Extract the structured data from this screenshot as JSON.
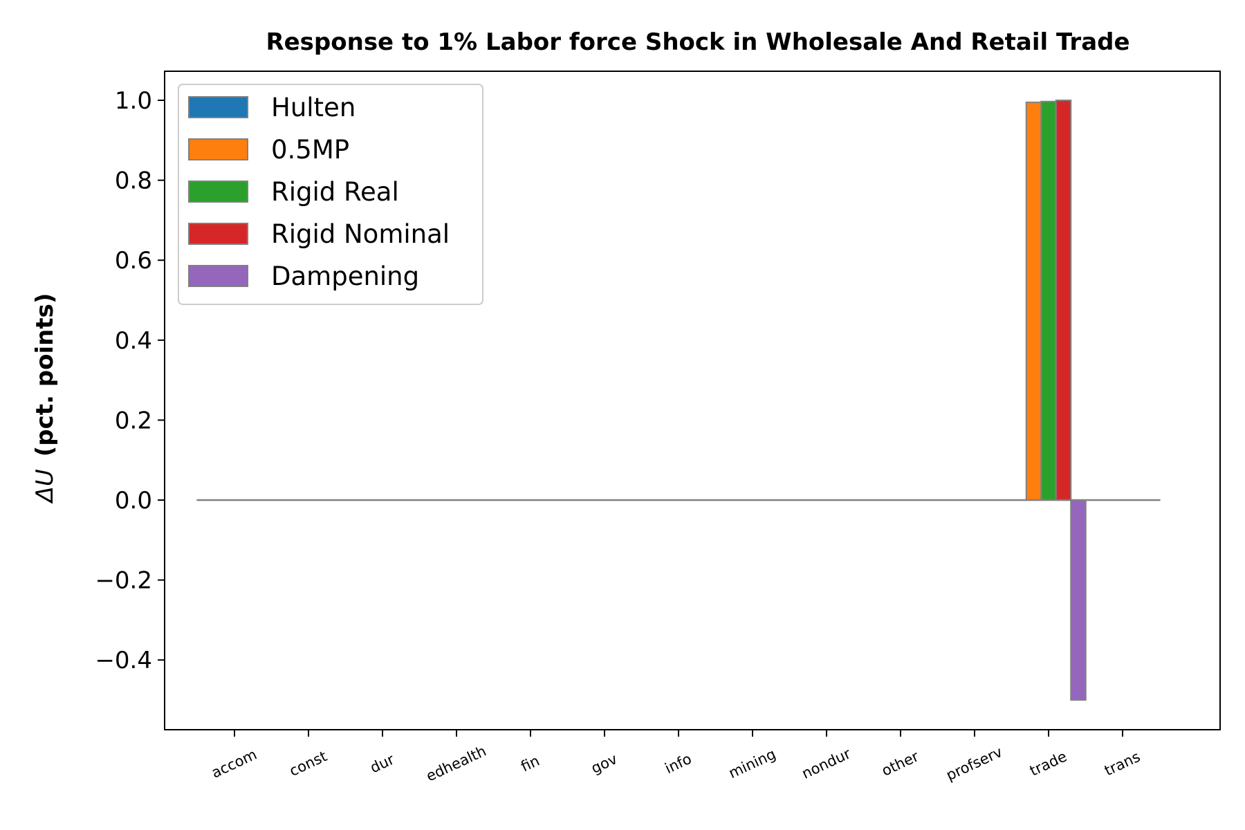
{
  "chart_data": {
    "type": "bar",
    "title": "Response to 1% Labor force Shock in Wholesale And Retail Trade",
    "xlabel": "",
    "ylabel_symbol": "ΔU",
    "ylabel_text": "(pct. points)",
    "ylim": [
      -0.57,
      1.075
    ],
    "yticks": [
      1.0,
      0.8,
      0.6,
      0.4,
      0.2,
      0.0,
      -0.2,
      -0.4
    ],
    "ytick_labels": [
      "1.0",
      "0.8",
      "0.6",
      "0.4",
      "0.2",
      "0.0",
      "−0.2",
      "−0.4"
    ],
    "categories": [
      "accom",
      "const",
      "dur",
      "edhealth",
      "fin",
      "gov",
      "info",
      "mining",
      "nondur",
      "other",
      "profserv",
      "trade",
      "trans"
    ],
    "legend_position": "upper-left",
    "grid": false,
    "series": [
      {
        "name": "Hulten",
        "color": "#1f77b4",
        "values": [
          0,
          0,
          0,
          0,
          0,
          0,
          0,
          0,
          0,
          0,
          0,
          0,
          0
        ]
      },
      {
        "name": "0.5MP",
        "color": "#ff7f0e",
        "values": [
          0,
          0,
          0,
          0,
          0,
          0,
          0,
          0,
          0,
          0,
          0,
          0.995,
          0
        ]
      },
      {
        "name": "Rigid Real",
        "color": "#2ca02c",
        "values": [
          0,
          0,
          0,
          0,
          0,
          0,
          0,
          0,
          0,
          0,
          0,
          0.997,
          0
        ]
      },
      {
        "name": "Rigid Nominal",
        "color": "#d62728",
        "values": [
          0,
          0,
          0,
          0,
          0,
          0,
          0,
          0,
          0,
          0,
          0,
          1.0,
          0
        ]
      },
      {
        "name": "Dampening",
        "color": "#9467bd",
        "values": [
          0,
          0,
          0,
          0,
          0,
          0,
          0,
          0,
          0,
          0,
          0,
          -0.5,
          0
        ]
      }
    ]
  }
}
